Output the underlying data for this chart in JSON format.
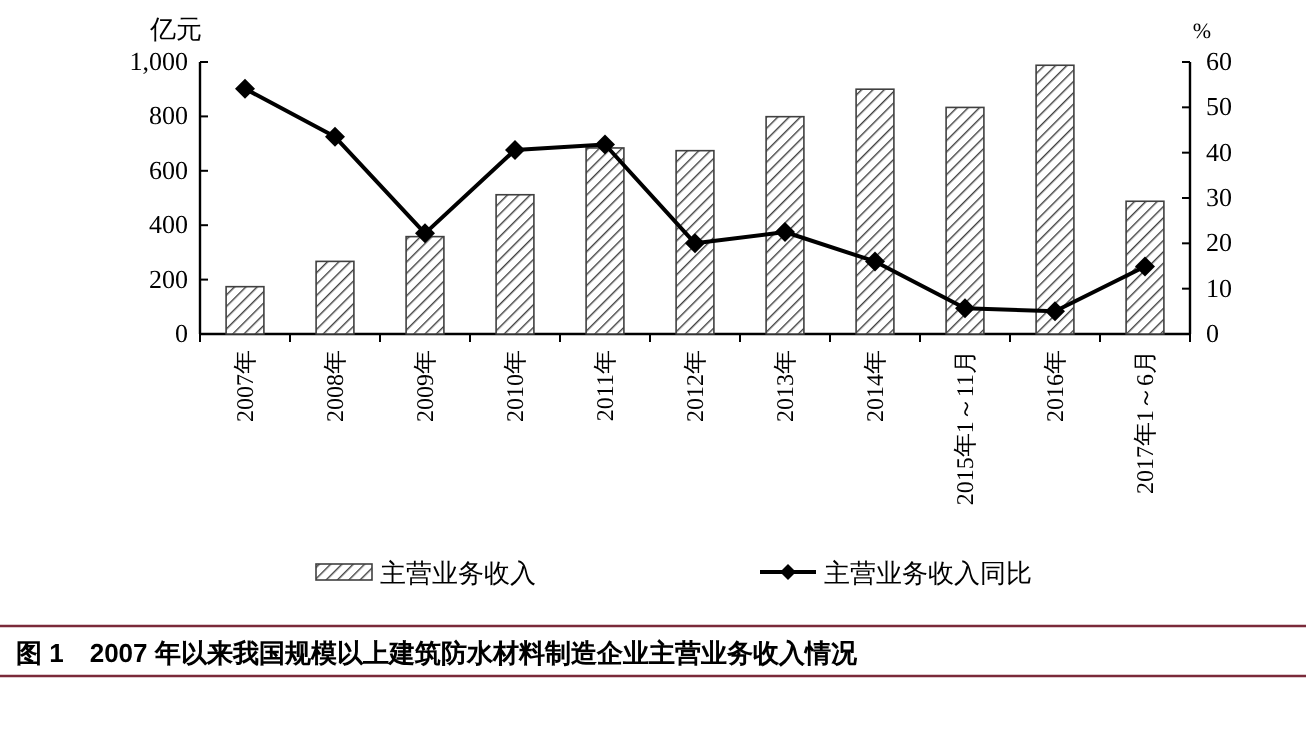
{
  "chart_data": {
    "type": "bar",
    "title": "图 1　2007 年以来我国规模以上建筑防水材料制造企业主营业务收入情况",
    "categories": [
      "2007年",
      "2008年",
      "2009年",
      "2010年",
      "2011年",
      "2012年",
      "2013年",
      "2014年",
      "2015年1～11月",
      "2016年",
      "2017年1～6月"
    ],
    "series": [
      {
        "name": "主营业务收入",
        "color": "#404040",
        "values": [
          174,
          267,
          358,
          512,
          684,
          674,
          799,
          900,
          833,
          988,
          488
        ]
      },
      {
        "name": "主营业务收入同比",
        "type": "line",
        "axis": "y2",
        "color": "#000000",
        "marker": "diamond",
        "values": [
          54.1,
          43.5,
          22.2,
          40.6,
          41.8,
          20.0,
          22.5,
          16.0,
          5.7,
          5.0,
          14.9
        ]
      }
    ],
    "ylabel": "亿元",
    "y2label": "%",
    "ylim": [
      0,
      1000
    ],
    "yticks": [
      0,
      200,
      400,
      600,
      800,
      {
        "value": 1000,
        "label": "1,000"
      }
    ],
    "y2lim": [
      0,
      60
    ],
    "y2ticks": [
      0,
      10,
      20,
      30,
      40,
      50,
      60
    ],
    "legend": "bottom"
  }
}
